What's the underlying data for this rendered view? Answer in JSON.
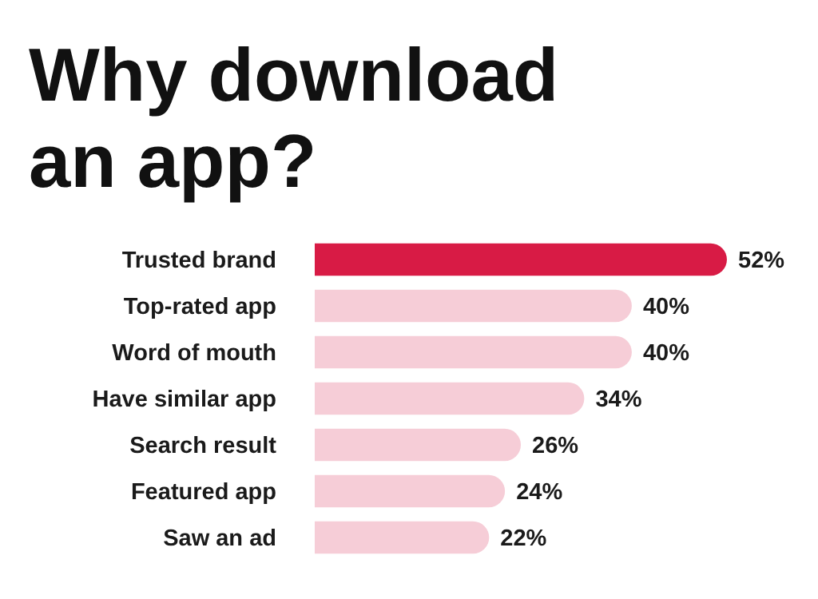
{
  "chart_data": {
    "type": "bar",
    "orientation": "horizontal",
    "title": "Why download an app?",
    "categories": [
      "Trusted brand",
      "Top-rated app",
      "Word of mouth",
      "Have similar app",
      "Search result",
      "Featured app",
      "Saw an ad"
    ],
    "values": [
      52,
      40,
      40,
      34,
      26,
      24,
      22
    ],
    "colors": [
      "#d81b45",
      "#f6cdd7",
      "#f6cdd7",
      "#f6cdd7",
      "#f6cdd7",
      "#f6cdd7",
      "#f6cdd7"
    ],
    "value_labels": [
      "52%",
      "40%",
      "40%",
      "34%",
      "26%",
      "24%",
      "22%"
    ]
  }
}
